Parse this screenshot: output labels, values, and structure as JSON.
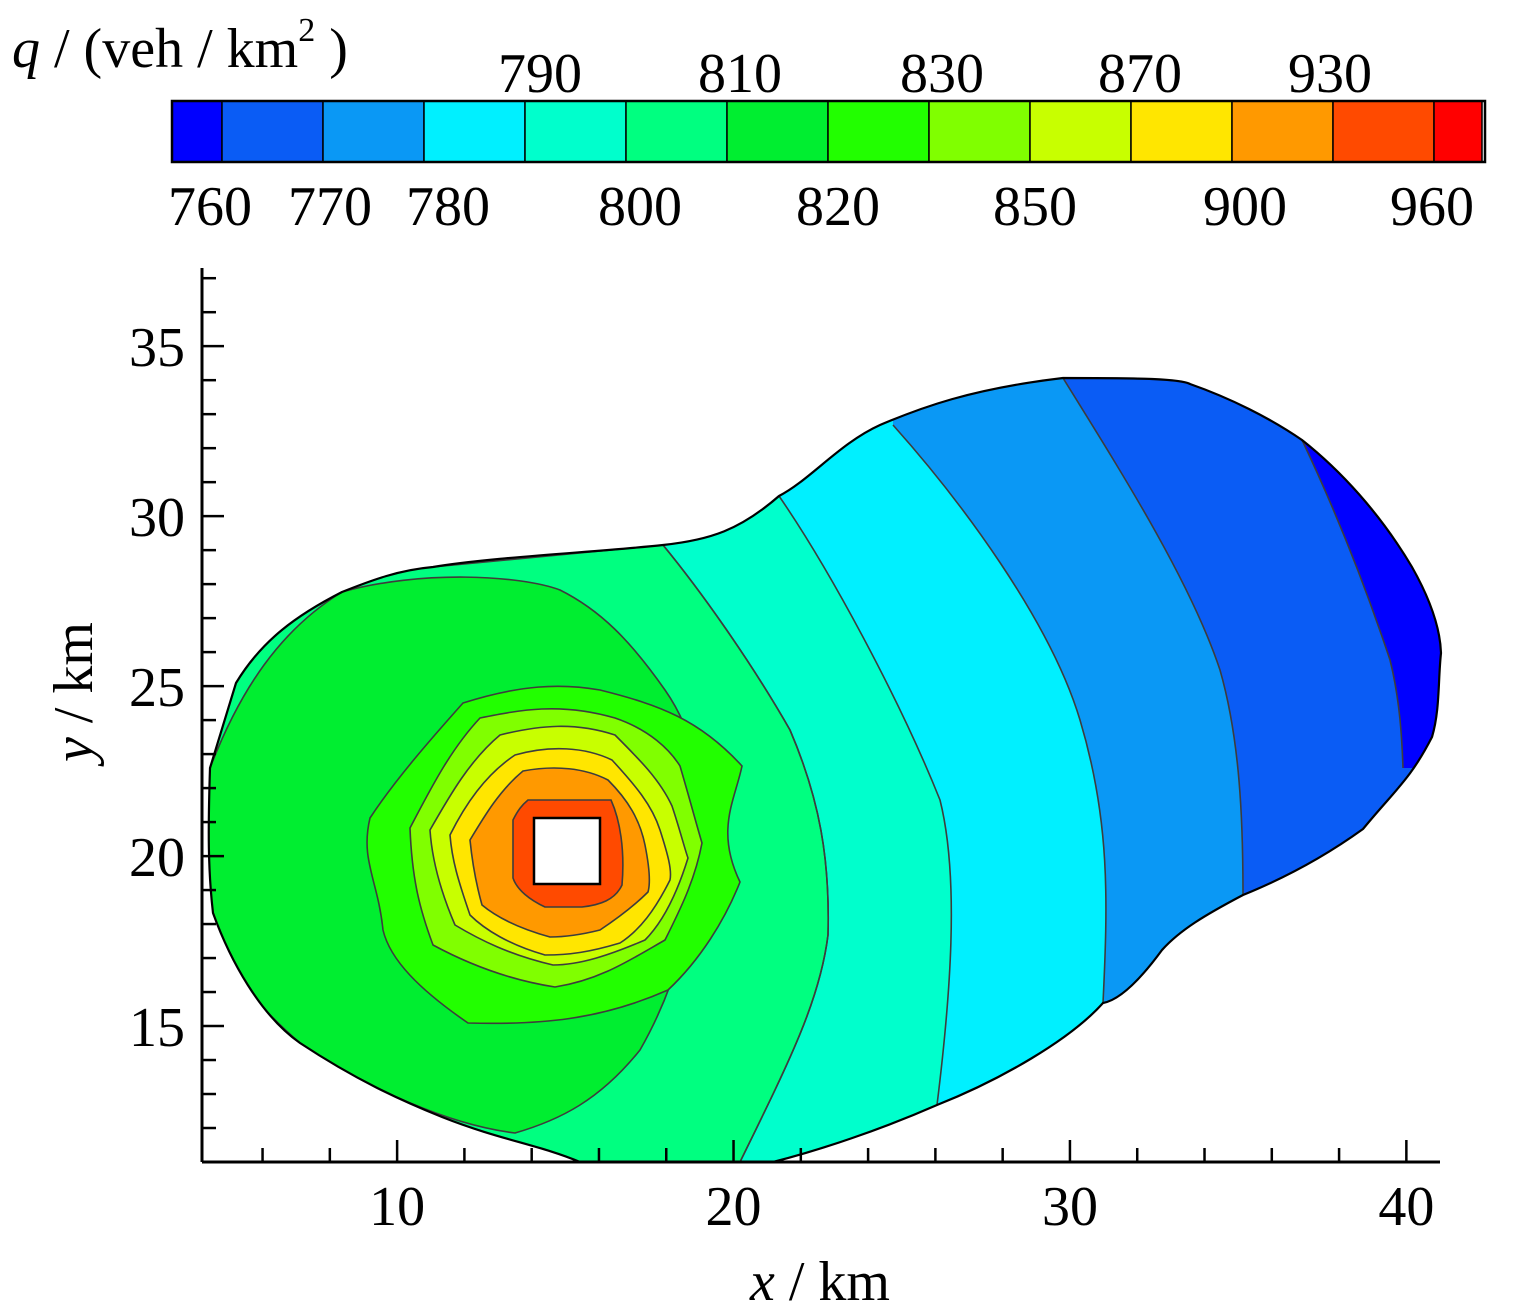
{
  "chart_data": {
    "type": "contour",
    "colorbar": {
      "title_var": "q",
      "title_units": " / (veh / km",
      "title_sup": "2",
      "title_close": " )",
      "levels": [
        760,
        770,
        780,
        790,
        800,
        810,
        820,
        830,
        850,
        870,
        900,
        930,
        960
      ],
      "labels_top": [
        "790",
        "810",
        "830",
        "870",
        "930"
      ],
      "labels_bottom": [
        "760",
        "770",
        "780",
        "800",
        "820",
        "850",
        "900",
        "960"
      ],
      "colors": [
        "#0000ff",
        "#0a5cf5",
        "#0a98f5",
        "#00f0ff",
        "#00ffcc",
        "#00ff80",
        "#00ee30",
        "#22ff00",
        "#80ff00",
        "#c8ff00",
        "#ffe600",
        "#ff9900",
        "#ff4a00",
        "#ff0000"
      ]
    },
    "x_axis": {
      "label_var": "x",
      "label_unit": " / km",
      "ticks": [
        "10",
        "20",
        "30",
        "40"
      ],
      "range": [
        4.2,
        41
      ]
    },
    "y_axis": {
      "label_var": "y",
      "label_unit": " / km",
      "ticks": [
        "15",
        "20",
        "25",
        "30",
        "35"
      ],
      "range": [
        11,
        37.3
      ]
    },
    "source_center": {
      "x": 14.9,
      "y": 19.9
    },
    "regions": [
      {
        "level": 810,
        "fill": "#00ff80"
      },
      {
        "level": 820,
        "fill": "#00ee30"
      },
      {
        "level": 830,
        "fill": "#22ff00"
      },
      {
        "level": 850,
        "fill": "#80ff00"
      },
      {
        "level": 870,
        "fill": "#c8ff00"
      },
      {
        "level": 900,
        "fill": "#ffe600"
      },
      {
        "level": 930,
        "fill": "#ff9900"
      },
      {
        "level": 960,
        "fill": "#ff4a00"
      }
    ],
    "bands": [
      {
        "range": "800-810",
        "fill": "#00ffcc"
      },
      {
        "range": "790-800",
        "fill": "#00f0ff"
      },
      {
        "range": "780-790",
        "fill": "#0a98f5"
      },
      {
        "range": "770-780",
        "fill": "#0a5cf5"
      },
      {
        "range": "760-770",
        "fill": "#0000ff"
      }
    ]
  }
}
